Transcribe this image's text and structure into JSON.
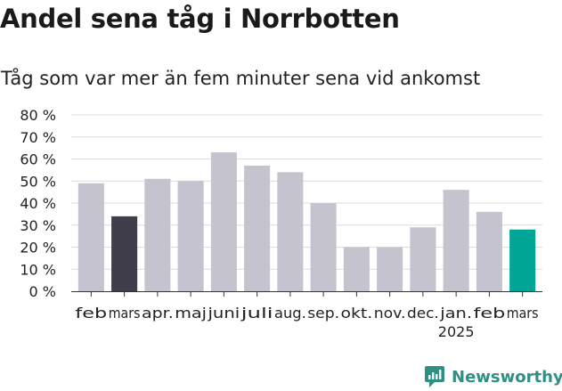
{
  "title": "Andel sena tåg i Norrbotten",
  "subtitle": "Tåg som var mer än fem minuter sena vid ankomst",
  "brand": {
    "name": "Newsworthy",
    "icon": "newsworthy-logo-icon",
    "color": "#2f8f83"
  },
  "chart_data": {
    "type": "bar",
    "categories": [
      "feb",
      "mars",
      "apr.",
      "maj",
      "juni",
      "juli",
      "aug.",
      "sep.",
      "okt.",
      "nov.",
      "dec.",
      "jan.",
      "feb",
      "mars"
    ],
    "year_label": {
      "text": "2025",
      "category_index": 11
    },
    "values": [
      49,
      34,
      51,
      50,
      63,
      57,
      54,
      40,
      20,
      20,
      29,
      46,
      36,
      28
    ],
    "highlight": {
      "1": "#403e4b",
      "13": "#00a596"
    },
    "default_color": "#c5c3ce",
    "ylim": [
      0,
      80
    ],
    "yticks": [
      0,
      10,
      20,
      30,
      40,
      50,
      60,
      70,
      80
    ],
    "ytick_format": "{v} %",
    "grid": true,
    "grid_color": "#dcdcdc",
    "xlabel": "",
    "ylabel": ""
  }
}
